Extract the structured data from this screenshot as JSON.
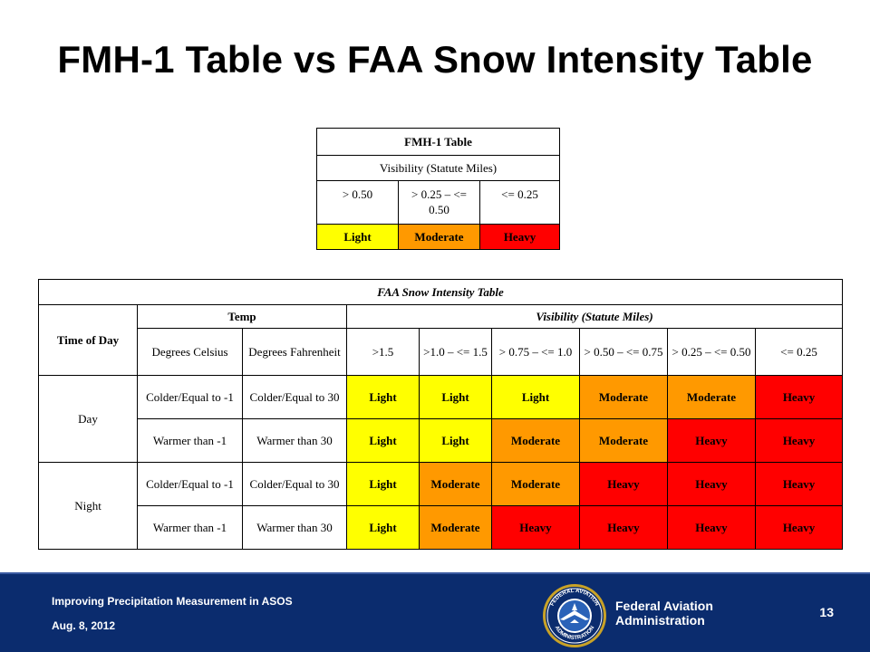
{
  "title": "FMH-1 Table vs FAA Snow Intensity Table",
  "fmh_table": {
    "heading": "FMH-1 Table",
    "subheading": "Visibility  (Statute Miles)",
    "ranges": [
      "> 0.50",
      "> 0.25 – <= 0.50",
      "<= 0.25"
    ],
    "intensities": [
      "Light",
      "Moderate",
      "Heavy"
    ]
  },
  "faa_table": {
    "heading": "FAA Snow Intensity Table",
    "time_of_day_label": "Time of Day",
    "temp_label": "Temp",
    "visibility_label": "Visibility  (Statute Miles)",
    "temp_columns": [
      "Degrees Celsius",
      "Degrees Fahrenheit"
    ],
    "visibility_columns": [
      ">1.5",
      ">1.0 – <= 1.5",
      "> 0.75 – <= 1.0",
      "> 0.50 – <= 0.75",
      "> 0.25 – <= 0.50",
      "<= 0.25"
    ],
    "rows": [
      {
        "time": "Day",
        "celsius": "Colder/Equal to -1",
        "fahrenheit": "Colder/Equal to 30",
        "values": [
          "Light",
          "Light",
          "Light",
          "Moderate",
          "Moderate",
          "Heavy"
        ]
      },
      {
        "time": "",
        "celsius": "Warmer than -1",
        "fahrenheit": "Warmer than 30",
        "values": [
          "Light",
          "Light",
          "Moderate",
          "Moderate",
          "Heavy",
          "Heavy"
        ]
      },
      {
        "time": "Night",
        "celsius": "Colder/Equal to -1",
        "fahrenheit": "Colder/Equal to 30",
        "values": [
          "Light",
          "Moderate",
          "Moderate",
          "Heavy",
          "Heavy",
          "Heavy"
        ]
      },
      {
        "time": "",
        "celsius": "Warmer than -1",
        "fahrenheit": "Warmer than 30",
        "values": [
          "Light",
          "Moderate",
          "Heavy",
          "Heavy",
          "Heavy",
          "Heavy"
        ]
      }
    ]
  },
  "colors": {
    "light": "#ffff00",
    "moderate": "#ff9900",
    "heavy": "#ff0000",
    "footer_bg": "#0b2c6e"
  },
  "footer": {
    "presentation": "Improving Precipitation Measurement in ASOS",
    "date": "Aug. 8, 2012",
    "organization_line1": "Federal Aviation",
    "organization_line2": "Administration",
    "page_number": "13",
    "seal_icon": "faa-seal-icon",
    "seal_top_text": "FEDERAL AVIATION",
    "seal_bottom_text": "ADMINISTRATION"
  }
}
